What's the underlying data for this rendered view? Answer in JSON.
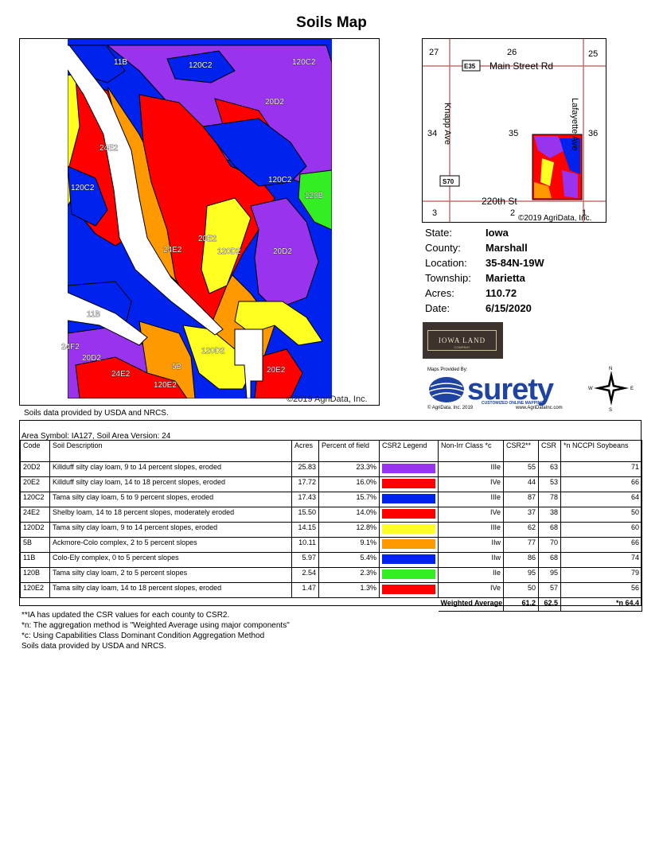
{
  "title": "Soils Map",
  "map": {
    "copyright": "©2019 AgriData, Inc.",
    "credit": "Soils data provided by USDA and NRCS.",
    "labels": {
      "l11b_top": "11B",
      "l120c2_a": "120C2",
      "l120c2_b": "120C2",
      "l20d2_a": "20D2",
      "l24e2_a": "24E2",
      "l120c2_c": "120C2",
      "l120c2_d": "120C2",
      "l120b": "120B",
      "l20e2_a": "20E2",
      "l24e2_b": "24E2",
      "l120d2_a": "120D2",
      "l20d2_b": "20D2",
      "l11b_b": "11B",
      "l24f2": "24F2",
      "l20d2_c": "20D2",
      "l120d2_b": "120D2",
      "l5b": "5B",
      "l24e2_c": "24E2",
      "l120e2": "120E2",
      "l20e2_b": "20E2"
    }
  },
  "locator": {
    "sections": {
      "s27": "27",
      "s26": "26",
      "s25": "25",
      "s34": "34",
      "s35": "35",
      "s36": "36",
      "s3": "3",
      "s2": "2",
      "s1": "1"
    },
    "road_top": "Main Street Rd",
    "shield_top": "E35",
    "road_left": "Knapp Ave",
    "road_right": "Lafayette Ave",
    "shield_left": "S70",
    "road_bottom": "220th St",
    "copyright": "©2019 AgriData, Inc."
  },
  "info": [
    {
      "label": "State:",
      "value": "Iowa"
    },
    {
      "label": "County:",
      "value": "Marshall"
    },
    {
      "label": "Location:",
      "value": "35-84N-19W"
    },
    {
      "label": "Township:",
      "value": "Marietta"
    },
    {
      "label": "Acres:",
      "value": "110.72"
    },
    {
      "label": "Date:",
      "value": "6/15/2020"
    }
  ],
  "logo": {
    "name": "IOWA LAND",
    "sub": "COMPANY"
  },
  "surety": {
    "maps_by": "Maps Provided By:",
    "word": "surety",
    "tagline": "CUSTOMIZED ONLINE MAPPING",
    "copyright": "© AgriData, Inc. 2019",
    "site": "www.AgriDataInc.com"
  },
  "compass": {
    "n": "N",
    "s": "S",
    "e": "E",
    "w": "W"
  },
  "table": {
    "area_symbol": "Area Symbol: IA127, Soil Area Version: 24",
    "headers": [
      "Code",
      "Soil Description",
      "Acres",
      "Percent of field",
      "CSR2 Legend",
      "Non-Irr Class *c",
      "CSR2**",
      "CSR",
      "*n NCCPI Soybeans"
    ],
    "rows": [
      {
        "code": "20D2",
        "desc": "Killduff silty clay loam, 9 to 14 percent slopes, eroded",
        "acres": "25.83",
        "pct": "23.3%",
        "color": "#9933ee",
        "cls": "IIIe",
        "csr2": "55",
        "csr": "63",
        "nccpi": "71"
      },
      {
        "code": "20E2",
        "desc": "Killduff silty clay loam, 14 to 18 percent slopes, eroded",
        "acres": "17.72",
        "pct": "16.0%",
        "color": "#ff0000",
        "cls": "IVe",
        "csr2": "44",
        "csr": "53",
        "nccpi": "66"
      },
      {
        "code": "120C2",
        "desc": "Tama silty clay loam, 5 to 9 percent slopes, eroded",
        "acres": "17.43",
        "pct": "15.7%",
        "color": "#0022ee",
        "cls": "IIIe",
        "csr2": "87",
        "csr": "78",
        "nccpi": "64"
      },
      {
        "code": "24E2",
        "desc": "Shelby loam, 14 to 18 percent slopes, moderately eroded",
        "acres": "15.50",
        "pct": "14.0%",
        "color": "#ff0000",
        "cls": "IVe",
        "csr2": "37",
        "csr": "38",
        "nccpi": "50"
      },
      {
        "code": "120D2",
        "desc": "Tama silty clay loam, 9 to 14 percent slopes, eroded",
        "acres": "14.15",
        "pct": "12.8%",
        "color": "#ffff22",
        "cls": "IIIe",
        "csr2": "62",
        "csr": "68",
        "nccpi": "60"
      },
      {
        "code": "5B",
        "desc": "Ackmore-Colo complex, 2 to 5 percent slopes",
        "acres": "10.11",
        "pct": "9.1%",
        "color": "#ff9900",
        "cls": "IIw",
        "csr2": "77",
        "csr": "70",
        "nccpi": "66"
      },
      {
        "code": "11B",
        "desc": "Colo-Ely complex, 0 to 5 percent slopes",
        "acres": "5.97",
        "pct": "5.4%",
        "color": "#0022ee",
        "cls": "IIw",
        "csr2": "86",
        "csr": "68",
        "nccpi": "74"
      },
      {
        "code": "120B",
        "desc": "Tama silty clay loam, 2 to 5 percent slopes",
        "acres": "2.54",
        "pct": "2.3%",
        "color": "#33ee22",
        "cls": "IIe",
        "csr2": "95",
        "csr": "95",
        "nccpi": "79"
      },
      {
        "code": "120E2",
        "desc": "Tama silty clay loam, 14 to 18 percent slopes, eroded",
        "acres": "1.47",
        "pct": "1.3%",
        "color": "#ff0000",
        "cls": "IVe",
        "csr2": "50",
        "csr": "57",
        "nccpi": "56"
      }
    ],
    "weighted": {
      "label": "Weighted Average",
      "csr2": "61.2",
      "csr": "62.5",
      "nccpi": "*n 64.4"
    }
  },
  "notes": [
    "**IA has updated the CSR values for each county to CSR2.",
    "*n: The aggregation method is \"Weighted Average using major components\"",
    "*c: Using Capabilities Class Dominant Condition Aggregation Method",
    "Soils data provided by USDA and NRCS."
  ]
}
